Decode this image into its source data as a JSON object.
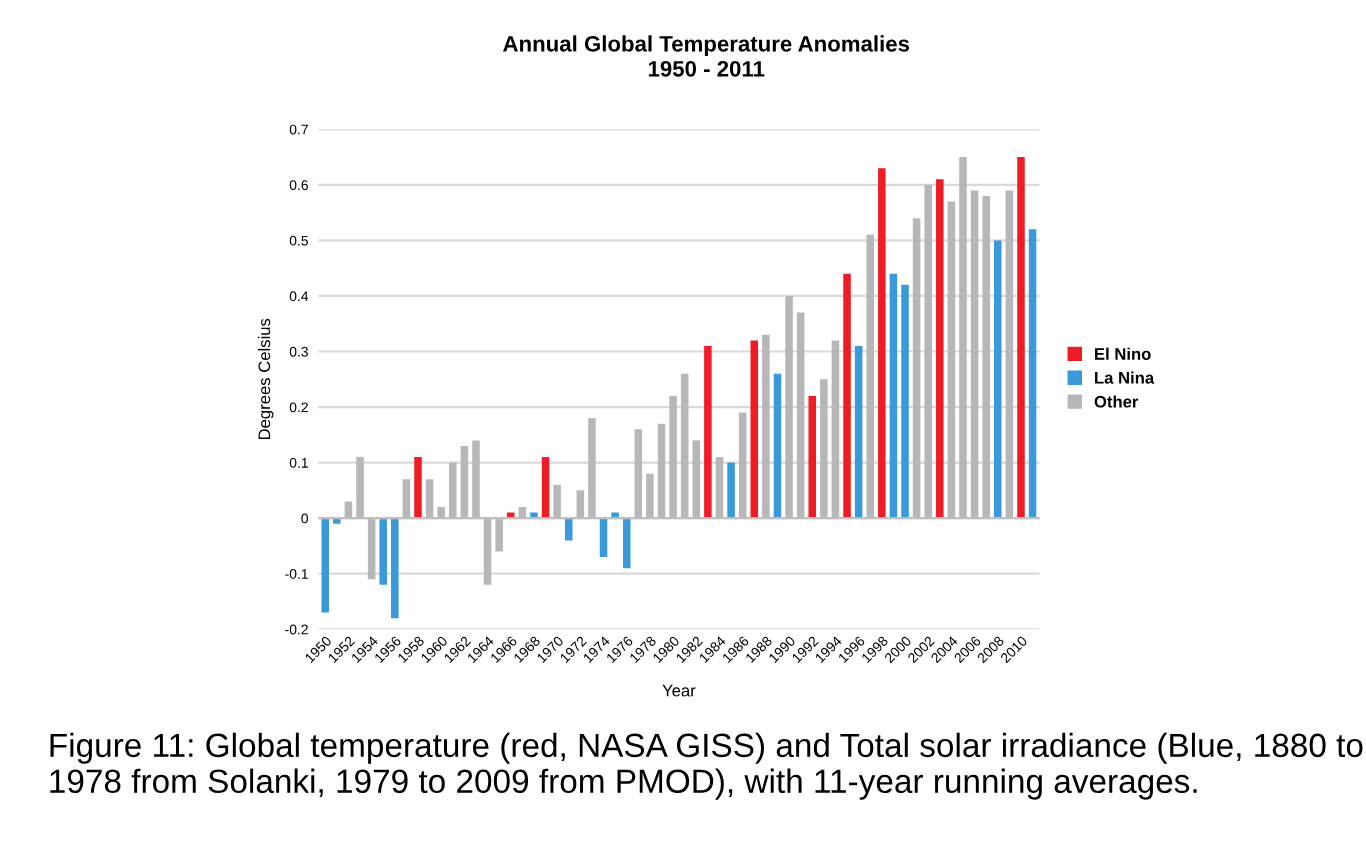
{
  "chart_data": {
    "type": "bar",
    "title": "Annual Global Temperature Anomalies",
    "subtitle": "1950 - 2011",
    "xlabel": "Year",
    "ylabel": "Degrees Celsius",
    "categories": [
      "1950",
      null,
      "1952",
      null,
      "1954",
      null,
      "1956",
      null,
      "1958",
      null,
      "1960",
      null,
      "1962",
      null,
      "1964",
      null,
      "1966",
      null,
      "1968",
      null,
      "1970",
      null,
      "1972",
      null,
      "1974",
      null,
      "1976",
      null,
      "1978",
      null,
      "1980",
      null,
      "1982",
      null,
      "1984",
      null,
      "1986",
      null,
      "1988",
      null,
      "1990",
      null,
      "1992",
      null,
      "1994",
      null,
      "1996",
      null,
      "1998",
      null,
      "2000",
      null,
      "2002",
      null,
      "2004",
      null,
      "2006",
      null,
      "2008",
      null,
      "2010",
      null
    ],
    "series": [
      {
        "name": "El Nino",
        "color": "#ee1c25",
        "values": [
          null,
          null,
          null,
          null,
          null,
          null,
          null,
          null,
          0.11,
          null,
          null,
          null,
          null,
          null,
          null,
          null,
          0.01,
          null,
          null,
          0.11,
          null,
          null,
          null,
          null,
          null,
          null,
          null,
          null,
          null,
          null,
          null,
          null,
          null,
          0.31,
          null,
          null,
          null,
          0.32,
          null,
          null,
          null,
          null,
          0.22,
          null,
          null,
          0.44,
          null,
          null,
          0.63,
          null,
          null,
          null,
          null,
          0.61,
          null,
          null,
          null,
          null,
          null,
          null,
          0.65,
          null
        ]
      },
      {
        "name": "La Nina",
        "color": "#3a9ad9",
        "values": [
          -0.17,
          -0.01,
          null,
          null,
          null,
          -0.12,
          -0.18,
          null,
          null,
          null,
          null,
          null,
          null,
          null,
          null,
          null,
          null,
          null,
          0.01,
          null,
          null,
          -0.04,
          null,
          null,
          -0.07,
          0.01,
          -0.09,
          null,
          null,
          null,
          null,
          null,
          null,
          null,
          null,
          0.1,
          null,
          null,
          null,
          0.26,
          null,
          null,
          null,
          null,
          null,
          null,
          0.31,
          null,
          null,
          0.44,
          0.42,
          null,
          null,
          null,
          null,
          null,
          null,
          null,
          0.5,
          null,
          null,
          0.52
        ]
      },
      {
        "name": "Other",
        "color": "#b7b7b7",
        "values": [
          null,
          null,
          0.03,
          0.11,
          -0.11,
          null,
          null,
          0.07,
          null,
          0.07,
          0.02,
          0.1,
          0.13,
          0.14,
          -0.12,
          -0.06,
          null,
          0.02,
          null,
          null,
          0.06,
          null,
          0.05,
          0.18,
          null,
          null,
          null,
          0.16,
          0.08,
          0.17,
          0.22,
          0.26,
          0.14,
          null,
          0.11,
          null,
          0.19,
          null,
          0.33,
          null,
          0.4,
          0.37,
          null,
          0.25,
          0.32,
          null,
          null,
          0.51,
          null,
          null,
          null,
          0.54,
          0.6,
          null,
          0.57,
          0.65,
          0.59,
          0.58,
          null,
          0.59,
          null,
          null
        ]
      }
    ],
    "ylim": [
      -0.2,
      0.7
    ],
    "yticks": [
      -0.2,
      -0.1,
      0,
      0.1,
      0.2,
      0.3,
      0.4,
      0.5,
      0.6,
      0.7
    ],
    "grid": "y",
    "legend": "right",
    "annotations": [
      "Figure 11: Global temperature (red, NASA GISS) and Total solar irradiance (Blue, 1880 to 1978 from Solanki, 1979 to 2009 from PMOD), with 11-year running averages."
    ]
  }
}
